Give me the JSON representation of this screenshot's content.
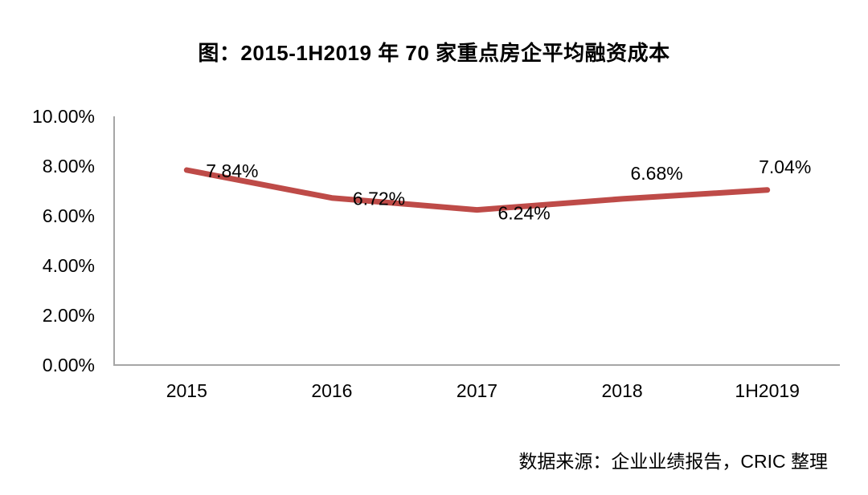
{
  "title": "图：2015-1H2019 年 70 家重点房企平均融资成本",
  "source": "数据来源：企业业绩报告，CRIC 整理",
  "chart_data": {
    "type": "line",
    "categories": [
      "2015",
      "2016",
      "2017",
      "2018",
      "1H2019"
    ],
    "values": [
      7.84,
      6.72,
      6.24,
      6.68,
      7.04
    ],
    "data_labels": [
      "7.84%",
      "6.72%",
      "6.24%",
      "6.68%",
      "7.04%"
    ],
    "y_ticks": [
      "0.00%",
      "2.00%",
      "4.00%",
      "6.00%",
      "8.00%",
      "10.00%"
    ],
    "y_tick_values": [
      0,
      2,
      4,
      6,
      8,
      10
    ],
    "ylim": [
      0,
      10
    ],
    "xlabel": "",
    "ylabel": "",
    "grid": false,
    "legend": "none",
    "line_color": "#BE4B48",
    "axis_color": "#A6A6A6",
    "text_color": "#000000"
  }
}
